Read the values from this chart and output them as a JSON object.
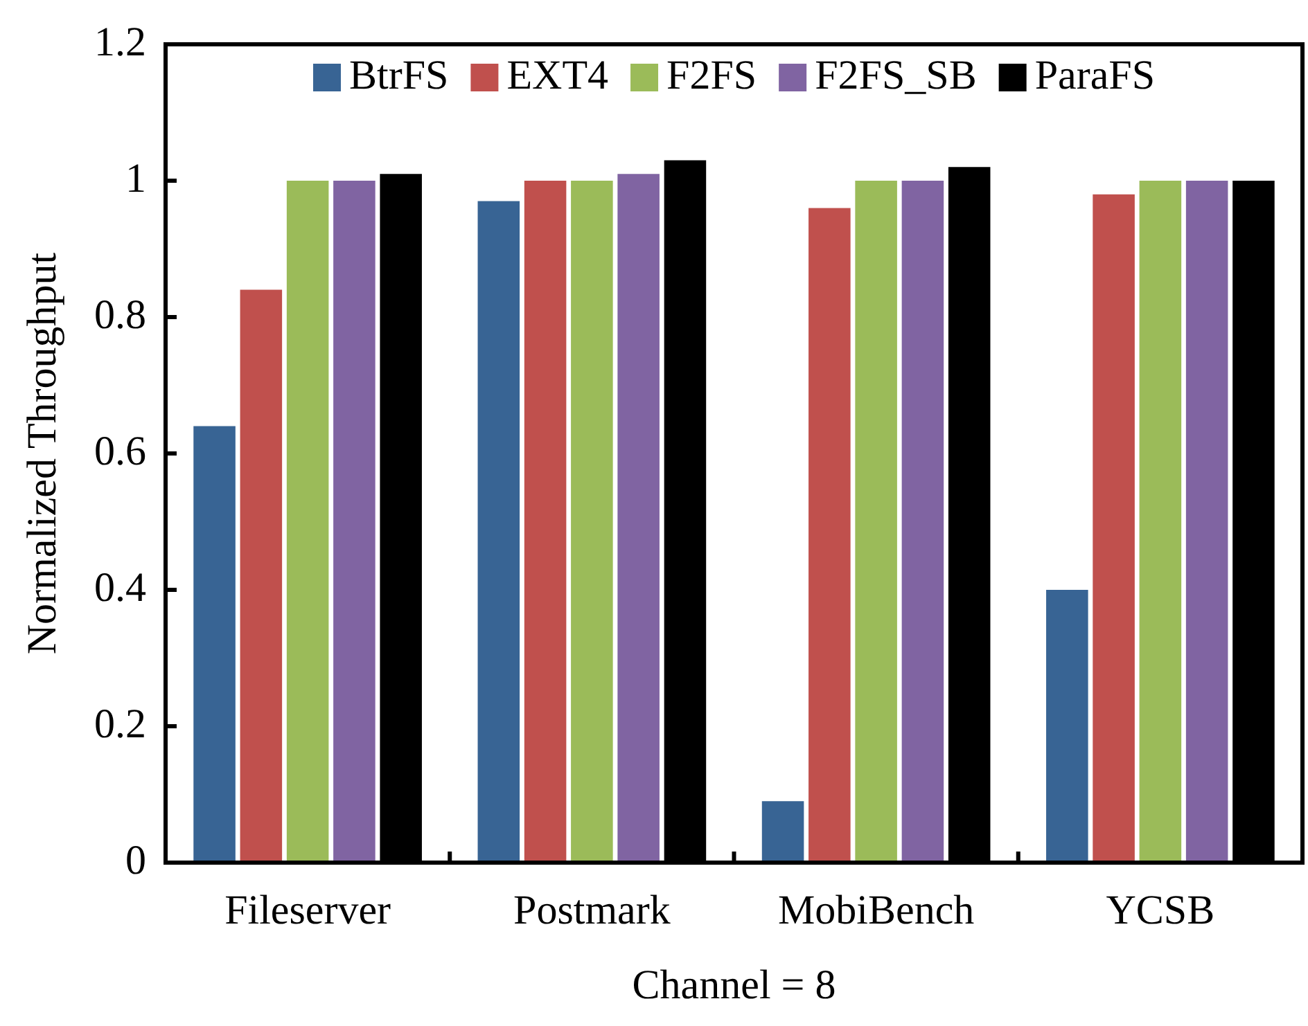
{
  "chart_data": {
    "type": "bar",
    "xlabel": "Channel = 8",
    "ylabel": "Normalized Throughput",
    "categories": [
      "Fileserver",
      "Postmark",
      "MobiBench",
      "YCSB"
    ],
    "series": [
      {
        "name": "BtrFS",
        "color": "#386494",
        "values": [
          0.64,
          0.97,
          0.09,
          0.4
        ]
      },
      {
        "name": "EXT4",
        "color": "#c0504d",
        "values": [
          0.84,
          1.0,
          0.96,
          0.98
        ]
      },
      {
        "name": "F2FS",
        "color": "#9bbb59",
        "values": [
          1.0,
          1.0,
          1.0,
          1.0
        ]
      },
      {
        "name": "F2FS_SB",
        "color": "#8064a2",
        "values": [
          1.0,
          1.01,
          1.0,
          1.0
        ]
      },
      {
        "name": "ParaFS",
        "color": "#000000",
        "values": [
          1.01,
          1.03,
          1.02,
          1.0
        ]
      }
    ],
    "ylim": [
      0,
      1.2
    ],
    "yticks": [
      0,
      0.2,
      0.4,
      0.6,
      0.8,
      1,
      1.2
    ],
    "grid": false,
    "legend": "top"
  }
}
